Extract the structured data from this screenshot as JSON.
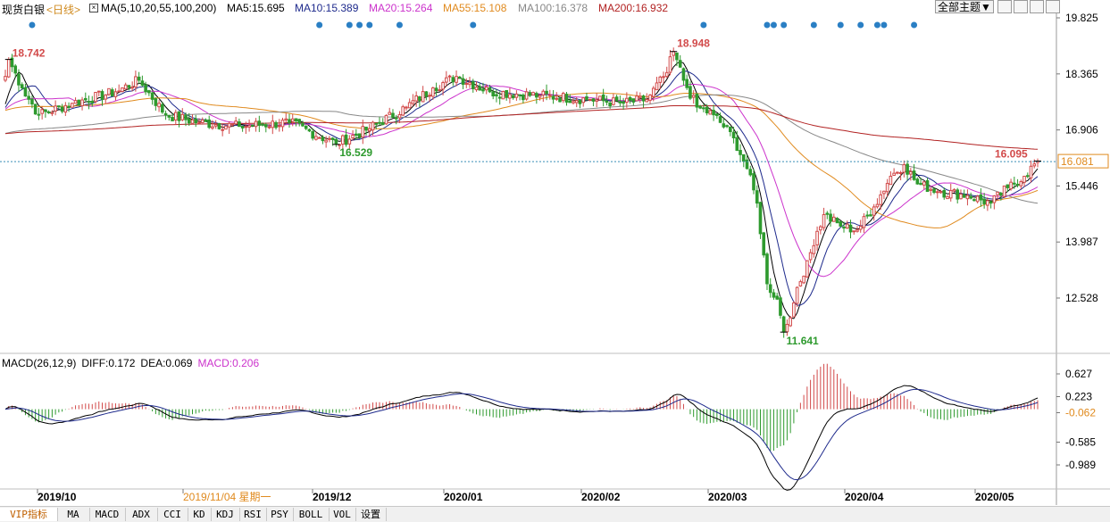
{
  "header": {
    "symbol": "现货白银",
    "period": "<日线>",
    "ma_group": "MA(5,10,20,55,100,200)",
    "ma5": "MA5:15.695",
    "ma10": "MA10:15.389",
    "ma20": "MA20:15.264",
    "ma55": "MA55:15.108",
    "ma100": "MA100:16.378",
    "ma200": "MA200:16.932",
    "theme_button": "全部主题▼"
  },
  "colors": {
    "up": "#d24a4a",
    "down": "#2e9a2e",
    "ma5": "#000000",
    "ma10": "#1e2a8c",
    "ma20": "#cc33cc",
    "ma55": "#e08a1e",
    "ma100": "#888888",
    "ma200": "#b22222",
    "marker": "#2a7fc4",
    "price_dash": "#3a8fb7"
  },
  "chart_data": {
    "type": "candlestick",
    "price_axis_ticks": [
      "19.825",
      "18.365",
      "16.906",
      "15.446",
      "13.987",
      "12.528"
    ],
    "ylim": [
      11.3,
      19.9
    ],
    "current_price": "16.081",
    "annotations": {
      "high_left": "18.742",
      "high_main": "18.948",
      "low_mid": "16.529",
      "low_main": "11.641",
      "last_high": "16.095"
    },
    "x_labels": [
      "2019/10",
      "2019/11/04 星期一",
      "2019/12",
      "2020/01",
      "2020/02",
      "2020/03",
      "2020/04",
      "2020/05"
    ],
    "macd": {
      "label": "MACD(26,12,9)",
      "diff": "DIFF:0.172",
      "dea": "DEA:0.069",
      "macd": "MACD:0.206",
      "axis_ticks": [
        "0.627",
        "0.223",
        "-0.062",
        "-0.585",
        "-0.989"
      ],
      "ylim": [
        -1.2,
        0.75
      ]
    },
    "anchors": [
      [
        0,
        18.3
      ],
      [
        1,
        18.742
      ],
      [
        5,
        18.0
      ],
      [
        10,
        17.3
      ],
      [
        20,
        17.6
      ],
      [
        33,
        17.9
      ],
      [
        40,
        18.2
      ],
      [
        48,
        17.3
      ],
      [
        58,
        17.1
      ],
      [
        70,
        17.0
      ],
      [
        85,
        17.1
      ],
      [
        99,
        16.55
      ],
      [
        108,
        16.9
      ],
      [
        120,
        17.5
      ],
      [
        128,
        18.0
      ],
      [
        135,
        18.3
      ],
      [
        145,
        17.9
      ],
      [
        160,
        17.8
      ],
      [
        175,
        17.7
      ],
      [
        185,
        17.6
      ],
      [
        192,
        17.7
      ],
      [
        198,
        18.4
      ],
      [
        200,
        18.948
      ],
      [
        203,
        18.2
      ],
      [
        207,
        17.5
      ],
      [
        212,
        17.3
      ],
      [
        218,
        16.7
      ],
      [
        222,
        15.9
      ],
      [
        225,
        15.0
      ],
      [
        228,
        12.9
      ],
      [
        231,
        12.5
      ],
      [
        233,
        11.641
      ],
      [
        236,
        12.4
      ],
      [
        240,
        13.5
      ],
      [
        245,
        14.7
      ],
      [
        250,
        14.4
      ],
      [
        255,
        14.3
      ],
      [
        260,
        14.9
      ],
      [
        265,
        15.7
      ],
      [
        269,
        16.0
      ],
      [
        273,
        15.5
      ],
      [
        280,
        15.3
      ],
      [
        288,
        15.2
      ],
      [
        295,
        15.0
      ],
      [
        300,
        15.4
      ],
      [
        305,
        15.7
      ],
      [
        309,
        16.095
      ]
    ],
    "markers_x": [
      8,
      94,
      103,
      106,
      109,
      118,
      140,
      209,
      228,
      230,
      233,
      242,
      250,
      256,
      261,
      263,
      272
    ]
  },
  "tabs": [
    "VIP指标",
    "MA",
    "MACD",
    "ADX",
    "CCI",
    "KD",
    "KDJ",
    "RSI",
    "PSY",
    "BOLL",
    "VOL",
    "设置"
  ]
}
